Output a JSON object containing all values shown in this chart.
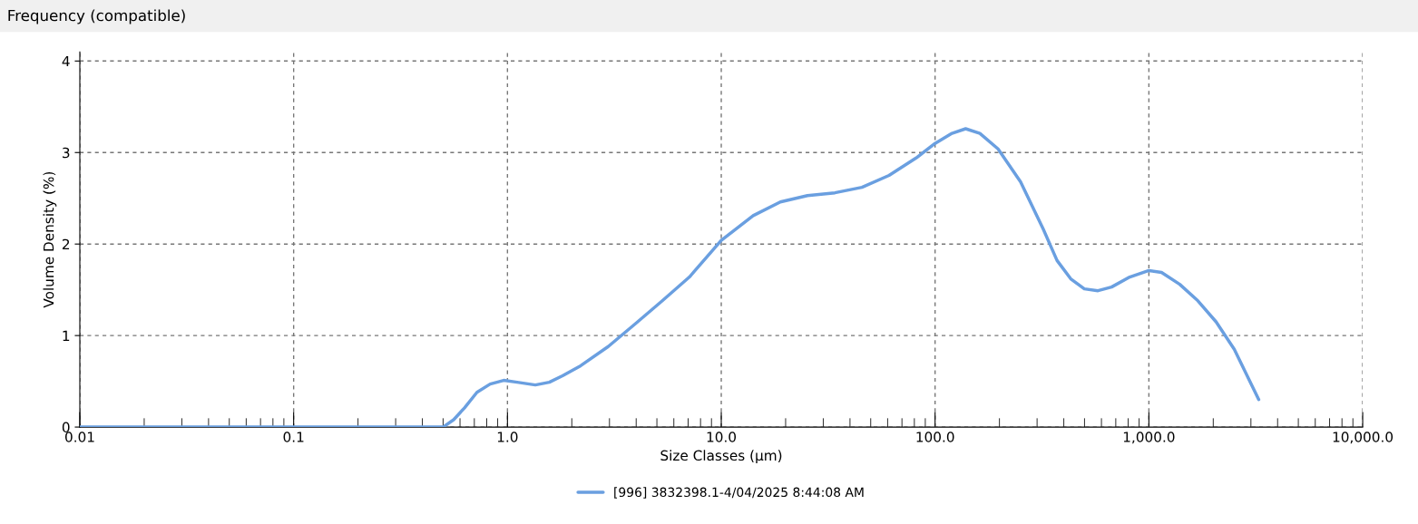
{
  "chart_data": {
    "type": "line",
    "title": "Frequency (compatible)",
    "xlabel": "Size Classes (µm)",
    "ylabel": "Volume Density (%)",
    "log": "x",
    "grid": true,
    "legend": "bottom",
    "line_style": "solid",
    "marker": "none",
    "xlim": [
      0.01,
      10000
    ],
    "xticks": [
      0.01,
      0.1,
      {
        "value": 1,
        "label": "1.0"
      },
      {
        "value": 10,
        "label": "10.0"
      },
      {
        "value": 100,
        "label": "100.0"
      },
      {
        "value": 1000,
        "label": "1,000.0"
      },
      {
        "value": 10000,
        "label": "10,000.0"
      }
    ],
    "ylim": [
      0,
      4.1
    ],
    "yticks": [
      0,
      1,
      2,
      3,
      4
    ],
    "series": [
      {
        "name": "[996] 3832398.1-4/04/2025 8:44:08 AM",
        "color": "#6a9fe0",
        "x": [
          0.01,
          0.05,
          0.2,
          0.5,
          0.56,
          0.63,
          0.72,
          0.83,
          0.96,
          1.11,
          1.35,
          1.57,
          1.81,
          2.2,
          2.96,
          3.97,
          5.3,
          7.1,
          10,
          14.1,
          18.9,
          25.3,
          34,
          45.5,
          60.9,
          81.5,
          100,
          120,
          139,
          162,
          197,
          251,
          321,
          372,
          431,
          499,
          578,
          669,
          814,
          1000,
          1146,
          1394,
          1695,
          2062,
          2508,
          3264
        ],
        "values": [
          0,
          0,
          0,
          0,
          0.08,
          0.21,
          0.38,
          0.47,
          0.51,
          0.49,
          0.46,
          0.49,
          0.56,
          0.67,
          0.88,
          1.13,
          1.38,
          1.64,
          2.04,
          2.31,
          2.46,
          2.53,
          2.56,
          2.62,
          2.75,
          2.94,
          3.1,
          3.21,
          3.26,
          3.21,
          3.04,
          2.68,
          2.16,
          1.82,
          1.62,
          1.51,
          1.49,
          1.53,
          1.64,
          1.71,
          1.69,
          1.56,
          1.38,
          1.15,
          0.85,
          0.3
        ]
      }
    ]
  }
}
